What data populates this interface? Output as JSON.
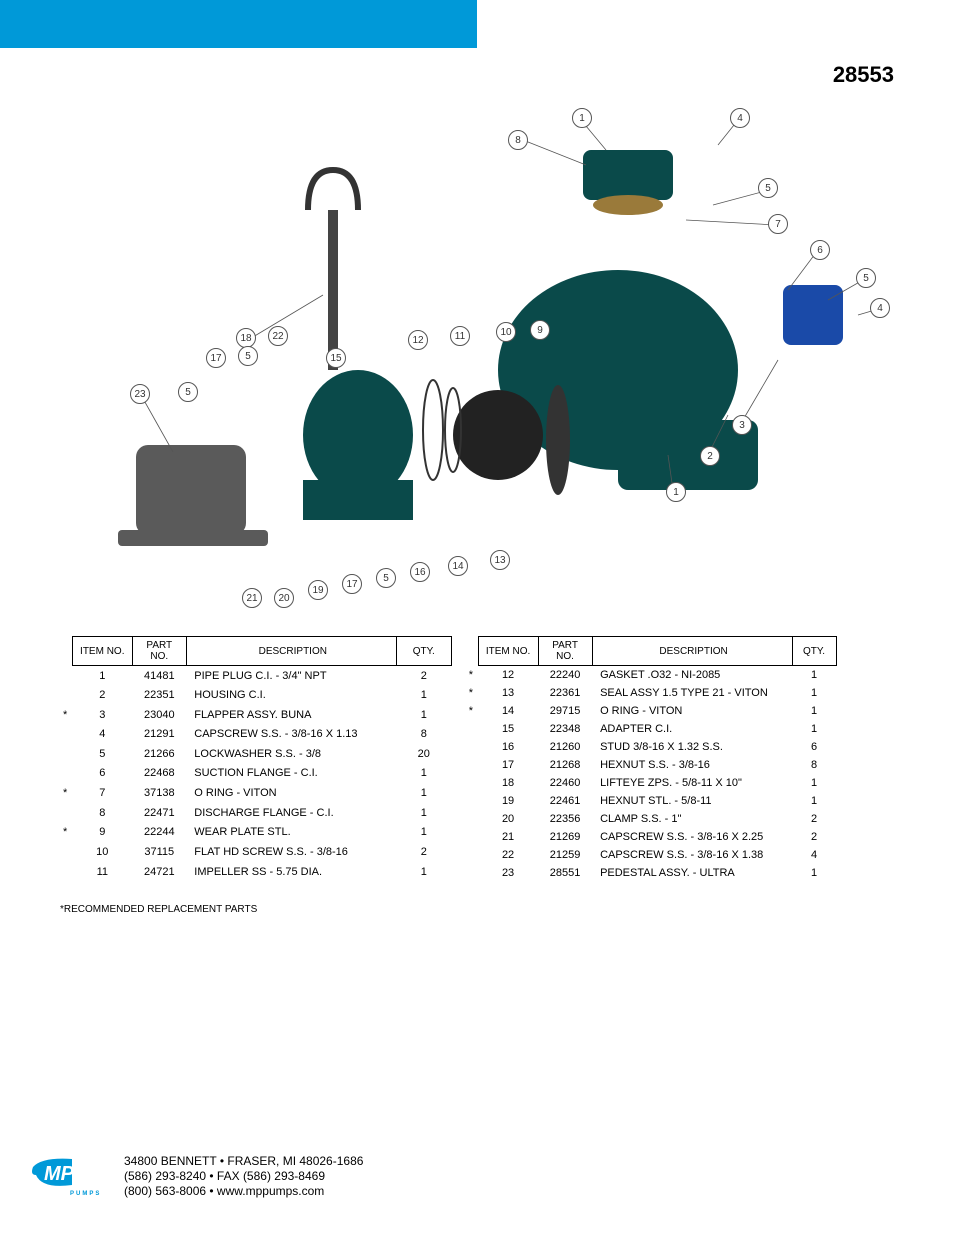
{
  "document": {
    "number": "28553",
    "note": "*RECOMMENDED REPLACEMENT PARTS"
  },
  "colors": {
    "accent": "#0099d8",
    "text": "#000000",
    "background": "#ffffff",
    "border": "#000000",
    "callout_border": "#555555"
  },
  "table_headers": {
    "item": "ITEM NO.",
    "part": "PART NO.",
    "desc": "DESCRIPTION",
    "qty": "QTY."
  },
  "table1_rows": [
    {
      "mark": "",
      "item": "1",
      "part": "41481",
      "desc": "PIPE PLUG C.I. - 3/4\" NPT",
      "qty": "2"
    },
    {
      "mark": "",
      "item": "2",
      "part": "22351",
      "desc": "HOUSING C.I.",
      "qty": "1"
    },
    {
      "mark": "*",
      "item": "3",
      "part": "23040",
      "desc": "FLAPPER ASSY. BUNA",
      "qty": "1"
    },
    {
      "mark": "",
      "item": "4",
      "part": "21291",
      "desc": "CAPSCREW S.S. - 3/8-16 X 1.13",
      "qty": "8"
    },
    {
      "mark": "",
      "item": "5",
      "part": "21266",
      "desc": "LOCKWASHER S.S. - 3/8",
      "qty": "20"
    },
    {
      "mark": "",
      "item": "6",
      "part": "22468",
      "desc": "SUCTION FLANGE - C.I.",
      "qty": "1"
    },
    {
      "mark": "*",
      "item": "7",
      "part": "37138",
      "desc": "O RING - VITON",
      "qty": "1"
    },
    {
      "mark": "",
      "item": "8",
      "part": "22471",
      "desc": "DISCHARGE FLANGE - C.I.",
      "qty": "1"
    },
    {
      "mark": "*",
      "item": "9",
      "part": "22244",
      "desc": "WEAR PLATE STL.",
      "qty": "1"
    },
    {
      "mark": "",
      "item": "10",
      "part": "37115",
      "desc": "FLAT HD SCREW S.S. - 3/8-16",
      "qty": "2"
    },
    {
      "mark": "",
      "item": "11",
      "part": "24721",
      "desc": "IMPELLER SS - 5.75 DIA.",
      "qty": "1"
    }
  ],
  "table2_rows": [
    {
      "mark": "*",
      "item": "12",
      "part": "22240",
      "desc": "GASKET .O32 - NI-2085",
      "qty": "1"
    },
    {
      "mark": "*",
      "item": "13",
      "part": "22361",
      "desc": "SEAL ASSY 1.5 TYPE 21 - VITON",
      "qty": "1"
    },
    {
      "mark": "*",
      "item": "14",
      "part": "29715",
      "desc": "O RING - VITON",
      "qty": "1"
    },
    {
      "mark": "",
      "item": "15",
      "part": "22348",
      "desc": "ADAPTER C.I.",
      "qty": "1"
    },
    {
      "mark": "",
      "item": "16",
      "part": "21260",
      "desc": "STUD 3/8-16 X 1.32 S.S.",
      "qty": "6"
    },
    {
      "mark": "",
      "item": "17",
      "part": "21268",
      "desc": "HEXNUT S.S. - 3/8-16",
      "qty": "8"
    },
    {
      "mark": "",
      "item": "18",
      "part": "22460",
      "desc": "LIFTEYE ZPS. - 5/8-11 X 10\"",
      "qty": "1"
    },
    {
      "mark": "",
      "item": "19",
      "part": "22461",
      "desc": "HEXNUT STL. - 5/8-11",
      "qty": "1"
    },
    {
      "mark": "",
      "item": "20",
      "part": "22356",
      "desc": "CLAMP S.S. - 1\"",
      "qty": "2"
    },
    {
      "mark": "",
      "item": "21",
      "part": "21269",
      "desc": "CAPSCREW S.S. - 3/8-16 X 2.25",
      "qty": "2"
    },
    {
      "mark": "",
      "item": "22",
      "part": "21259",
      "desc": "CAPSCREW S.S. - 3/8-16 X 1.38",
      "qty": "4"
    },
    {
      "mark": "",
      "item": "23",
      "part": "28551",
      "desc": "PEDESTAL ASSY. - ULTRA",
      "qty": "1"
    }
  ],
  "callouts": {
    "c1a": "1",
    "c4a": "4",
    "c8": "8",
    "c5a": "5",
    "c7": "7",
    "c6": "6",
    "c5b": "5",
    "c4b": "4",
    "c18": "18",
    "c22": "22",
    "c5c": "5",
    "c17a": "17",
    "c15": "15",
    "c12": "12",
    "c11": "11",
    "c10": "10",
    "c9": "9",
    "c3": "3",
    "c2": "2",
    "c1b": "1",
    "c23": "23",
    "c5d": "5",
    "c21": "21",
    "c20": "20",
    "c19": "19",
    "c17b": "17",
    "c5e": "5",
    "c16": "16",
    "c14": "14",
    "c13": "13"
  },
  "footer": {
    "line1": "34800 BENNETT • FRASER, MI 48026-1686",
    "line2": "(586) 293-8240 • FAX (586) 293-8469",
    "line3": "(800) 563-8006 • www.mppumps.com",
    "logo_text": "MP",
    "logo_sub": "PUMPS"
  }
}
